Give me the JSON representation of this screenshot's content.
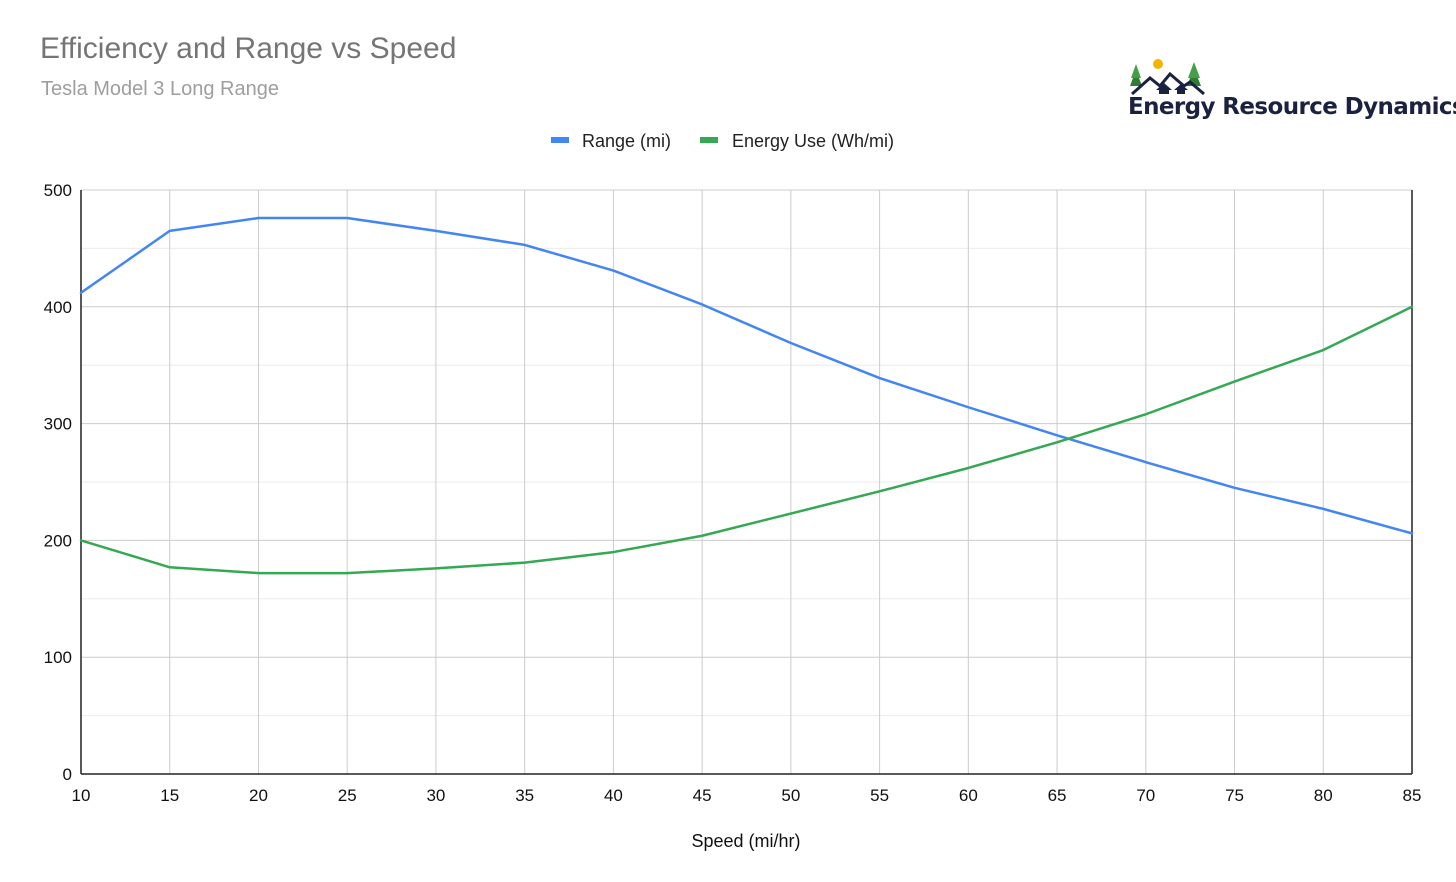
{
  "header": {
    "title": "Efficiency and Range vs Speed",
    "subtitle": "Tesla Model 3 Long Range"
  },
  "logo": {
    "text": "Energy Resource Dynamics",
    "icon": "mountain-house-trees-logo"
  },
  "chart_data": {
    "type": "line",
    "title": "Efficiency and Range vs Speed",
    "subtitle": "Tesla Model 3 Long Range",
    "xlabel": "Speed (mi/hr)",
    "ylabel": "",
    "x": [
      10,
      15,
      20,
      25,
      30,
      35,
      40,
      45,
      50,
      55,
      60,
      65,
      70,
      75,
      80,
      85
    ],
    "xlim": [
      10,
      85
    ],
    "ylim": [
      0,
      500
    ],
    "x_ticks": [
      10,
      15,
      20,
      25,
      30,
      35,
      40,
      45,
      50,
      55,
      60,
      65,
      70,
      75,
      80,
      85
    ],
    "y_ticks": [
      0,
      100,
      200,
      300,
      400,
      500
    ],
    "grid": true,
    "legend_position": "top-center",
    "series": [
      {
        "name": "Range (mi)",
        "color": "#4285f4",
        "values": [
          412,
          465,
          476,
          476,
          465,
          453,
          431,
          402,
          369,
          339,
          314,
          290,
          267,
          245,
          227,
          206
        ]
      },
      {
        "name": "Energy Use (Wh/mi)",
        "color": "#34a853",
        "values": [
          200,
          177,
          172,
          172,
          176,
          181,
          190,
          204,
          223,
          242,
          262,
          284,
          308,
          336,
          363,
          400
        ]
      }
    ]
  }
}
